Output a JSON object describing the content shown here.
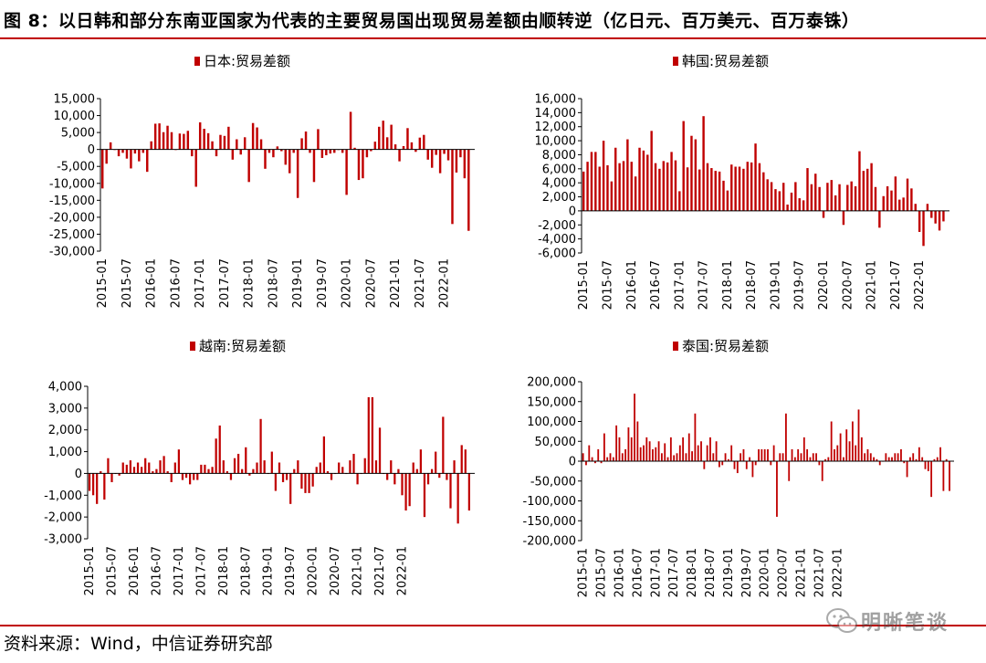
{
  "header": {
    "title": "图 8：以日韩和部分东南亚国家为代表的主要贸易国出现贸易差额由顺转逆（亿日元、百万美元、百万泰铢）",
    "rule_color": "#c00000"
  },
  "footer": {
    "source": "资料来源：Wind，中信证券研究部",
    "watermark": "明晰笔谈"
  },
  "bar_color": "#c00000",
  "chart_data": [
    {
      "type": "bar",
      "id": "japan",
      "title": "",
      "legend": "日本:贸易差额",
      "ylim": [
        -30000,
        15000
      ],
      "yticks": [
        15000,
        10000,
        5000,
        0,
        -5000,
        -10000,
        -15000,
        -20000,
        -25000,
        -30000
      ],
      "ytick_labels": [
        "15,000",
        "10,000",
        "5,000",
        "0",
        "-5,000",
        "-10,000",
        "-15,000",
        "-20,000",
        "-25,000",
        "-30,000"
      ],
      "xtick_labels": [
        "2015-01",
        "2015-07",
        "2016-01",
        "2016-07",
        "2017-01",
        "2017-07",
        "2018-01",
        "2018-07",
        "2019-01",
        "2019-07",
        "2020-01",
        "2020-07",
        "2021-01",
        "2021-07",
        "2022-01"
      ],
      "start": "2015-01",
      "values": [
        -11500,
        -4200,
        2100,
        -100,
        -2000,
        -1000,
        -2700,
        -5600,
        -1200,
        -3500,
        -1000,
        -6600,
        2400,
        7600,
        7700,
        5100,
        7000,
        5100,
        -100,
        4700,
        4600,
        5500,
        -2000,
        -11000,
        8000,
        6100,
        4800,
        2400,
        -2000,
        4300,
        4000,
        6700,
        -3000,
        3000,
        -1500,
        3600,
        -9600,
        7800,
        6500,
        3000,
        -5700,
        -1000,
        -2300,
        900,
        -500,
        -4500,
        -7000,
        -1000,
        -14300,
        3300,
        5300,
        -1000,
        -9600,
        6000,
        -2500,
        -1700,
        -1200,
        -1000,
        0,
        -1000,
        -13400,
        11100,
        500,
        -9000,
        -8500,
        -2300,
        -500,
        2300,
        6700,
        8500,
        3600,
        7300,
        1500,
        -3500,
        1000,
        6300,
        2100,
        -700,
        3500,
        4300,
        -3000,
        -5400,
        -1600,
        -7000,
        -1300,
        -3200,
        -22000,
        -6800,
        -2300,
        -8500,
        -24000
      ]
    },
    {
      "type": "bar",
      "id": "korea",
      "title": "",
      "legend": "韩国:贸易差额",
      "ylim": [
        -6000,
        16000
      ],
      "yticks": [
        16000,
        14000,
        12000,
        10000,
        8000,
        6000,
        4000,
        2000,
        0,
        -2000,
        -4000,
        -6000
      ],
      "ytick_labels": [
        "16,000",
        "14,000",
        "12,000",
        "10,000",
        "8,000",
        "6,000",
        "4,000",
        "2,000",
        "0",
        "-2,000",
        "-4,000",
        "-6,000"
      ],
      "xtick_labels": [
        "2015-01",
        "2015-07",
        "2016-01",
        "2016-07",
        "2017-01",
        "2017-07",
        "2018-01",
        "2018-07",
        "2019-01",
        "2019-07",
        "2020-01",
        "2020-07",
        "2021-01",
        "2021-07",
        "2022-01"
      ],
      "start": "2015-01",
      "values": [
        5600,
        7000,
        8400,
        8400,
        6300,
        10000,
        6500,
        4200,
        9000,
        6800,
        7100,
        10200,
        7000,
        4900,
        9000,
        8600,
        8000,
        11400,
        6800,
        6000,
        7100,
        6900,
        8400,
        7200,
        2800,
        12800,
        6200,
        10700,
        10200,
        5900,
        13500,
        6800,
        6100,
        5700,
        5600,
        4300,
        2900,
        6600,
        6300,
        6300,
        6000,
        7000,
        6900,
        9600,
        6800,
        5500,
        4500,
        4100,
        3100,
        2800,
        4000,
        900,
        2600,
        4100,
        1800,
        1500,
        6100,
        3800,
        5300,
        3400,
        -1000,
        4000,
        4400,
        2200,
        3800,
        -2000,
        3700,
        4200,
        3500,
        8500,
        5700,
        6000,
        6800,
        3400,
        -2400,
        2100,
        3500,
        2900,
        4900,
        1600,
        1900,
        4600,
        3200,
        1000,
        -3000,
        -5000,
        1000,
        -1000,
        -1800,
        -2800,
        -1500
      ]
    },
    {
      "type": "bar",
      "id": "vietnam",
      "title": "",
      "legend": "越南:贸易差额",
      "ylim": [
        -3000,
        4000
      ],
      "yticks": [
        4000,
        3000,
        2000,
        1000,
        0,
        -1000,
        -2000,
        -3000
      ],
      "ytick_labels": [
        "4,000",
        "3,000",
        "2,000",
        "1,000",
        "0",
        "-1,000",
        "-2,000",
        "-3,000"
      ],
      "xtick_labels": [
        "2015-01",
        "2015-07",
        "2016-01",
        "2016-07",
        "2017-01",
        "2017-07",
        "2018-01",
        "2018-07",
        "2019-01",
        "2019-07",
        "2020-01",
        "2020-07",
        "2021-01",
        "2021-07",
        "2022-01"
      ],
      "start": "2015-01",
      "values": [
        -800,
        -1000,
        -1400,
        100,
        -1200,
        700,
        -400,
        0,
        -100,
        500,
        400,
        600,
        300,
        500,
        300,
        700,
        500,
        100,
        200,
        600,
        800,
        100,
        -400,
        500,
        1100,
        -300,
        -200,
        -500,
        -300,
        -300,
        400,
        400,
        200,
        300,
        1600,
        2200,
        600,
        100,
        -300,
        700,
        900,
        200,
        1200,
        -100,
        200,
        500,
        2500,
        600,
        0,
        1000,
        -800,
        500,
        -400,
        -300,
        -1400,
        200,
        600,
        -700,
        -900,
        -900,
        -600,
        300,
        500,
        1700,
        100,
        -300,
        0,
        500,
        300,
        0,
        600,
        900,
        -500,
        0,
        700,
        3500,
        3500,
        600,
        2100,
        0,
        -300,
        600,
        -500,
        200,
        -1000,
        -1700,
        -1500,
        500,
        200,
        1100,
        -2000,
        -500,
        200,
        1000,
        -200,
        2600,
        -300,
        -1600,
        600,
        -2300,
        1300,
        1100,
        -1700
      ]
    },
    {
      "type": "bar",
      "id": "thailand",
      "title": "",
      "legend": "泰国:贸易差额",
      "ylim": [
        -200000,
        200000
      ],
      "yticks": [
        200000,
        150000,
        100000,
        50000,
        0,
        -50000,
        -100000,
        -150000,
        -200000
      ],
      "ytick_labels": [
        "200,000",
        "150,000",
        "100,000",
        "50,000",
        "0",
        "-50,000",
        "-100,000",
        "-150,000",
        "-200,000"
      ],
      "xtick_labels": [
        "2015-01",
        "2015-07",
        "2016-01",
        "2016-07",
        "2017-01",
        "2017-07",
        "2018-01",
        "2018-07",
        "2019-01",
        "2019-07",
        "2020-01",
        "2020-07",
        "2021-01",
        "2021-07",
        "2022-01"
      ],
      "start": "2015-01",
      "values": [
        20000,
        -10000,
        40000,
        10000,
        -5000,
        30000,
        -5000,
        70000,
        10000,
        20000,
        10000,
        90000,
        60000,
        20000,
        30000,
        85000,
        60000,
        170000,
        100000,
        35000,
        40000,
        60000,
        50000,
        30000,
        35000,
        50000,
        20000,
        45000,
        10000,
        60000,
        15000,
        20000,
        40000,
        60000,
        20000,
        70000,
        25000,
        120000,
        40000,
        50000,
        -20000,
        40000,
        60000,
        20000,
        50000,
        -15000,
        -10000,
        20000,
        5000,
        40000,
        -20000,
        -30000,
        20000,
        30000,
        -20000,
        10000,
        -40000,
        -10000,
        30000,
        30000,
        30000,
        30000,
        -10000,
        40000,
        -140000,
        20000,
        20000,
        120000,
        -50000,
        30000,
        10000,
        30000,
        20000,
        60000,
        30000,
        10000,
        20000,
        20000,
        -10000,
        -50000,
        5000,
        10000,
        100000,
        30000,
        40000,
        70000,
        10000,
        80000,
        50000,
        100000,
        40000,
        130000,
        60000,
        20000,
        30000,
        20000,
        10000,
        5000,
        -10000,
        0,
        20000,
        10000,
        10000,
        20000,
        20000,
        30000,
        -5000,
        -40000,
        10000,
        20000,
        5000,
        35000,
        10000,
        -20000,
        -25000,
        -90000,
        5000,
        10000,
        35000,
        -75000,
        5000,
        -75000
      ]
    }
  ]
}
